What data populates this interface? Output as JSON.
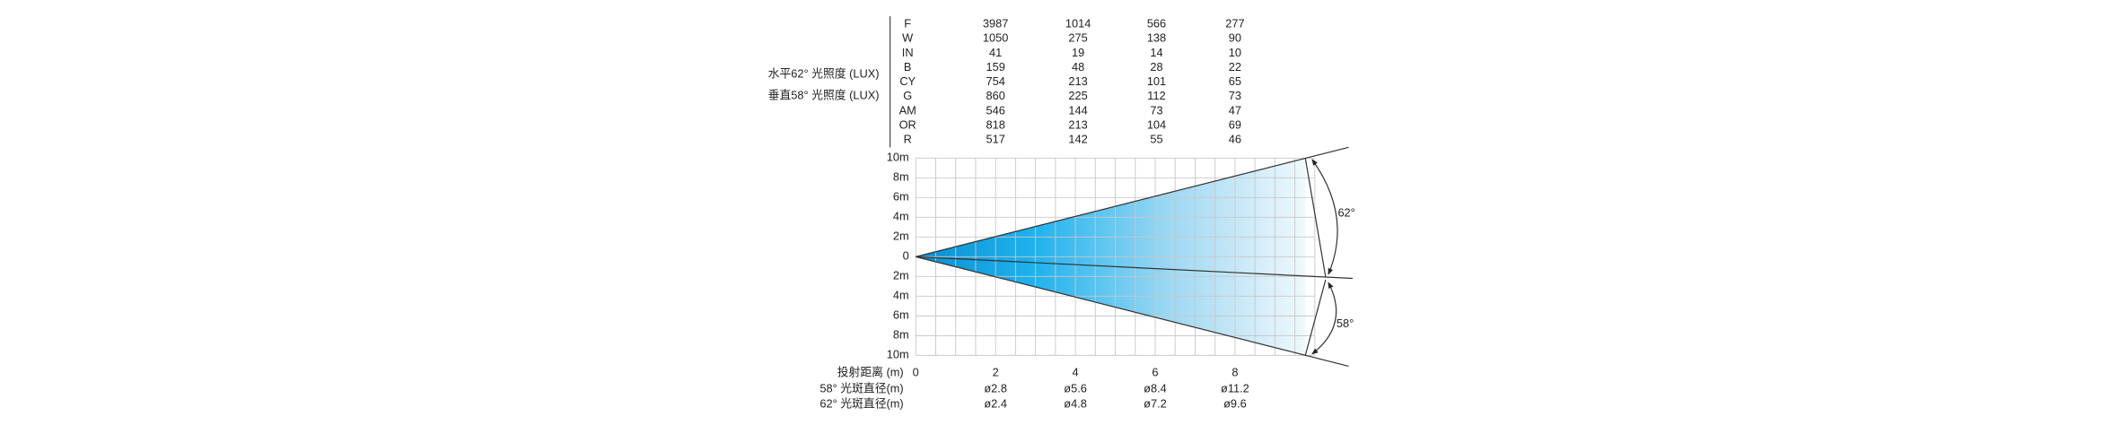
{
  "side_labels": [
    "水平62° 光照度 (LUX)",
    "垂直58° 光照度 (LUX)"
  ],
  "table": {
    "rows": [
      {
        "label": "F",
        "values": [
          3987,
          1014,
          566,
          277
        ]
      },
      {
        "label": "W",
        "values": [
          1050,
          275,
          138,
          90
        ]
      },
      {
        "label": "IN",
        "values": [
          41,
          19,
          14,
          10
        ]
      },
      {
        "label": "B",
        "values": [
          159,
          48,
          28,
          22
        ]
      },
      {
        "label": "CY",
        "values": [
          754,
          213,
          101,
          65
        ]
      },
      {
        "label": "G",
        "values": [
          860,
          225,
          112,
          73
        ]
      },
      {
        "label": "AM",
        "values": [
          546,
          144,
          73,
          47
        ]
      },
      {
        "label": "OR",
        "values": [
          818,
          213,
          104,
          69
        ]
      },
      {
        "label": "R",
        "values": [
          517,
          142,
          55,
          46
        ]
      }
    ]
  },
  "y_axis_labels": [
    "10m",
    "8m",
    "6m",
    "4m",
    "2m",
    "0",
    "2m",
    "4m",
    "6m",
    "8m",
    "10m"
  ],
  "x_axis": {
    "title": "投射距离 (m)",
    "values": [
      "0",
      "2",
      "4",
      "6",
      "8"
    ]
  },
  "spot_rows": [
    {
      "label": "58° 光斑直径(m)",
      "values": [
        "ø2.8",
        "ø5.6",
        "ø8.4",
        "ø11.2"
      ]
    },
    {
      "label": "62° 光斑直径(m)",
      "values": [
        "ø2.4",
        "ø4.8",
        "ø7.2",
        "ø9.6"
      ]
    }
  ],
  "angles": [
    "62°",
    "58°"
  ]
}
